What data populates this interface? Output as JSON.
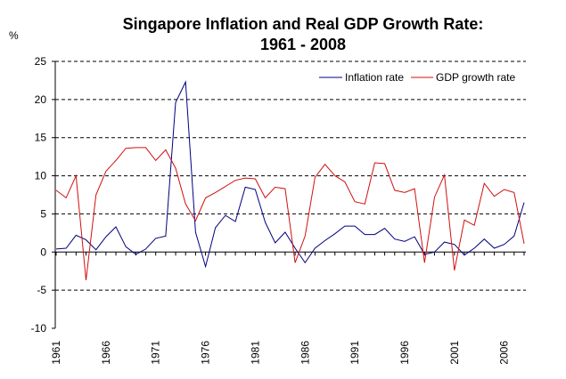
{
  "chart_data": {
    "type": "line",
    "title": "Singapore Inflation and Real GDP Growth Rate:",
    "subtitle": "1961 - 2008",
    "ylabel": "%",
    "xlabel": "",
    "ylim": [
      -10,
      25
    ],
    "yticks": [
      "25",
      "20",
      "15",
      "10",
      "5",
      "0",
      "-5",
      "-10"
    ],
    "xticks": [
      "1961",
      "1966",
      "1971",
      "1976",
      "1981",
      "1986",
      "1991",
      "1996",
      "2001",
      "2006"
    ],
    "grid": "horizontal dashed",
    "legend": "top-right",
    "x": [
      1961,
      1962,
      1963,
      1964,
      1965,
      1966,
      1967,
      1968,
      1969,
      1970,
      1971,
      1972,
      1973,
      1974,
      1975,
      1976,
      1977,
      1978,
      1979,
      1980,
      1981,
      1982,
      1983,
      1984,
      1985,
      1986,
      1987,
      1988,
      1989,
      1990,
      1991,
      1992,
      1993,
      1994,
      1995,
      1996,
      1997,
      1998,
      1999,
      2000,
      2001,
      2002,
      2003,
      2004,
      2005,
      2006,
      2007,
      2008
    ],
    "series": [
      {
        "name": "Inflation rate",
        "color": "#000080",
        "values": [
          0.4,
          0.5,
          2.2,
          1.6,
          0.3,
          2.0,
          3.3,
          0.7,
          -0.3,
          0.4,
          1.8,
          2.1,
          19.6,
          22.3,
          2.6,
          -1.9,
          3.2,
          4.8,
          4.0,
          8.5,
          8.2,
          3.9,
          1.2,
          2.6,
          0.5,
          -1.4,
          0.5,
          1.5,
          2.4,
          3.4,
          3.4,
          2.3,
          2.3,
          3.1,
          1.7,
          1.4,
          2.0,
          -0.3,
          0.0,
          1.3,
          1.0,
          -0.4,
          0.5,
          1.7,
          0.5,
          1.0,
          2.1,
          6.5
        ]
      },
      {
        "name": "GDP growth rate",
        "color": "#d01010",
        "values": [
          8.1,
          7.1,
          10.0,
          -3.7,
          7.5,
          10.6,
          12.0,
          13.6,
          13.7,
          13.7,
          12.0,
          13.4,
          11.0,
          6.3,
          4.1,
          7.1,
          7.8,
          8.6,
          9.4,
          9.7,
          9.6,
          7.1,
          8.5,
          8.3,
          -1.4,
          2.1,
          9.8,
          11.5,
          10.0,
          9.2,
          6.6,
          6.3,
          11.7,
          11.6,
          8.1,
          7.8,
          8.3,
          -1.4,
          7.2,
          10.1,
          -2.4,
          4.2,
          3.5,
          9.0,
          7.3,
          8.2,
          7.8,
          1.1
        ]
      }
    ]
  }
}
